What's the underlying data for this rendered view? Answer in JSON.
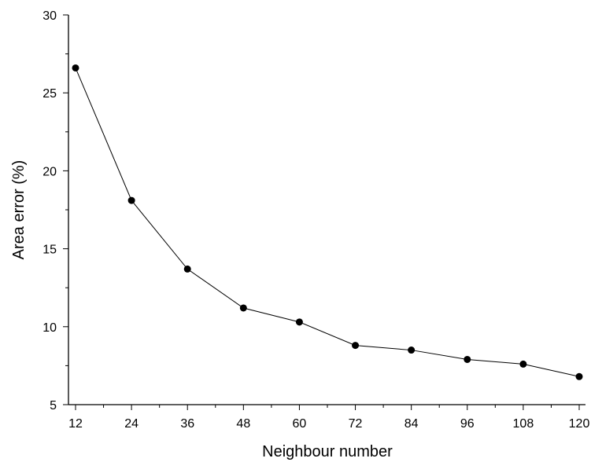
{
  "chart_data": {
    "type": "line",
    "title": "",
    "xlabel": "Neighbour number",
    "ylabel": "Area error (%)",
    "x": [
      12,
      24,
      36,
      48,
      60,
      72,
      84,
      96,
      108,
      120
    ],
    "xticks": [
      12,
      24,
      36,
      48,
      60,
      72,
      84,
      96,
      108,
      120
    ],
    "yticks": [
      5,
      10,
      15,
      20,
      25,
      30
    ],
    "xlim": [
      12,
      120
    ],
    "ylim": [
      5,
      30
    ],
    "grid": false,
    "series": [
      {
        "values": [
          26.6,
          18.1,
          13.7,
          11.2,
          10.3,
          8.8,
          8.5,
          7.9,
          7.6,
          6.8
        ],
        "color": "#000000",
        "marker": "filled-circle"
      }
    ]
  }
}
